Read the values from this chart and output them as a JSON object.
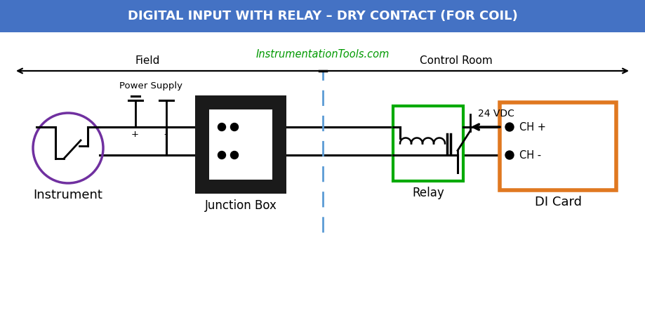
{
  "title": "DIGITAL INPUT WITH RELAY – DRY CONTACT (FOR COIL)",
  "title_bg": "#4472c4",
  "title_fg": "#ffffff",
  "website": "InstrumentationTools.com",
  "website_color": "#009900",
  "bg_color": "#ffffff",
  "field_label": "Field",
  "control_room_label": "Control Room",
  "instrument_label": "Instrument",
  "junction_box_label": "Junction Box",
  "relay_label": "Relay",
  "di_card_label": "DI Card",
  "power_supply_label": "Power Supply",
  "vdc_label": "24 VDC",
  "ch_plus_label": "CH +",
  "ch_minus_label": "CH -",
  "plus_label": "+",
  "minus_label": "-",
  "instrument_circle_color": "#7030a0",
  "relay_box_color": "#00aa00",
  "di_card_color": "#e07820",
  "jbox_color": "#1a1a1a",
  "wire_color": "#000000",
  "dash_line_color": "#5b9bd5",
  "figsize": [
    9.19,
    4.76
  ],
  "dpi": 100
}
